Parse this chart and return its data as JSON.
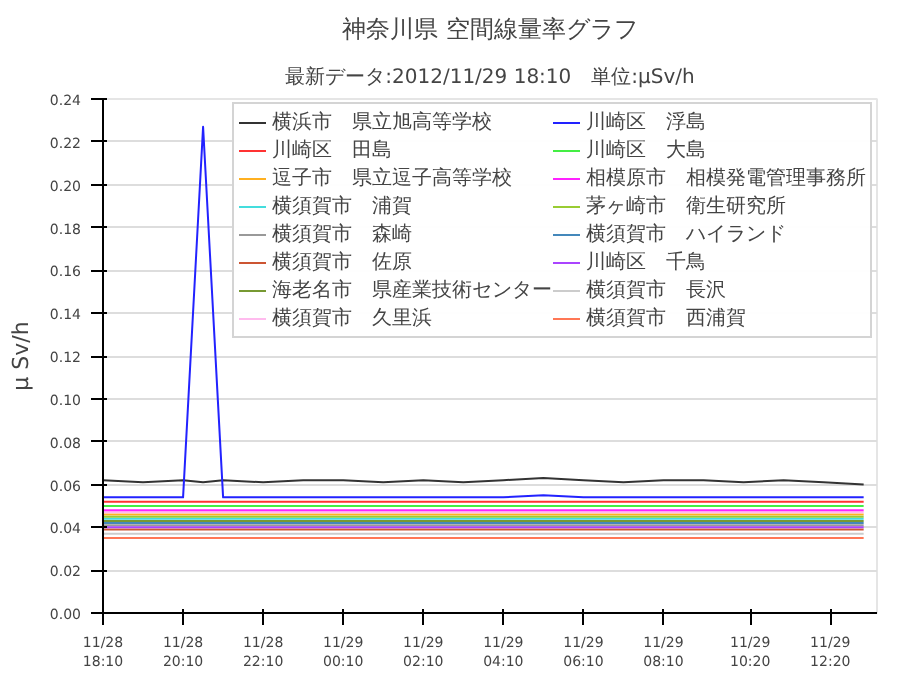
{
  "chart_data": {
    "type": "line",
    "title": "神奈川県 空間線量率グラフ",
    "subtitle": "最新データ:2012/11/29 18:10　単位:μSv/h",
    "ylabel": "μ Sv/h",
    "x": [
      "2012-11-28T18:10",
      "2012-11-28T19:10",
      "2012-11-28T20:10",
      "2012-11-28T20:40",
      "2012-11-28T21:10",
      "2012-11-28T22:10",
      "2012-11-28T23:10",
      "2012-11-29T00:10",
      "2012-11-29T01:10",
      "2012-11-29T02:10",
      "2012-11-29T03:10",
      "2012-11-29T04:10",
      "2012-11-29T05:10",
      "2012-11-29T06:10",
      "2012-11-29T07:10",
      "2012-11-29T08:10",
      "2012-11-29T09:10",
      "2012-11-29T10:10",
      "2012-11-29T11:10",
      "2012-11-29T12:10",
      "2012-11-29T13:10"
    ],
    "xlim": [
      "2012-11-28T18:10",
      "2012-11-29T13:30"
    ],
    "xticks": [
      {
        "value": "2012-11-28T18:10",
        "label": "11/28\n18:10"
      },
      {
        "value": "2012-11-28T20:10",
        "label": "11/28\n20:10"
      },
      {
        "value": "2012-11-28T22:10",
        "label": "11/28\n22:10"
      },
      {
        "value": "2012-11-29T00:10",
        "label": "11/29\n00:10"
      },
      {
        "value": "2012-11-29T02:10",
        "label": "11/29\n02:10"
      },
      {
        "value": "2012-11-29T04:10",
        "label": "11/29\n04:10"
      },
      {
        "value": "2012-11-29T06:10",
        "label": "11/29\n06:10"
      },
      {
        "value": "2012-11-29T08:10",
        "label": "11/29\n08:10"
      },
      {
        "value": "2012-11-29T10:20",
        "label": "11/29\n10:20"
      },
      {
        "value": "2012-11-29T12:20",
        "label": "11/29\n12:20"
      }
    ],
    "ylim": [
      0,
      0.24
    ],
    "yticks": [
      {
        "value": 0,
        "label": "0.00"
      },
      0.02,
      0.04,
      0.06,
      0.08,
      {
        "value": 0.1,
        "label": "0.10"
      },
      0.12,
      0.14,
      0.16,
      0.18,
      {
        "value": 0.2,
        "label": "0.20"
      },
      0.22,
      0.24
    ],
    "grid": "y",
    "legend": "top right",
    "marker": "none",
    "line_style": "solid",
    "series": [
      {
        "name": "横浜市　県立旭高等学校",
        "color": "#333333",
        "values": [
          0.062,
          0.061,
          0.062,
          0.061,
          0.062,
          0.061,
          0.062,
          0.062,
          0.061,
          0.062,
          0.061,
          0.062,
          0.063,
          0.062,
          0.061,
          0.062,
          0.062,
          0.061,
          0.062,
          0.061,
          0.06
        ]
      },
      {
        "name": "川崎区　田島",
        "color": "#ff3333",
        "values": [
          0.052,
          0.052,
          0.052,
          0.052,
          0.052,
          0.052,
          0.052,
          0.052,
          0.052,
          0.052,
          0.052,
          0.052,
          0.052,
          0.052,
          0.052,
          0.052,
          0.052,
          0.052,
          0.052,
          0.052,
          0.052
        ]
      },
      {
        "name": "逗子市　県立逗子高等学校",
        "color": "#ffb020",
        "values": [
          0.046,
          0.046,
          0.046,
          0.046,
          0.046,
          0.046,
          0.046,
          0.046,
          0.046,
          0.046,
          0.046,
          0.046,
          0.046,
          0.046,
          0.046,
          0.046,
          0.046,
          0.046,
          0.046,
          0.046,
          0.046
        ]
      },
      {
        "name": "横須賀市　浦賀",
        "color": "#44dddd",
        "values": [
          0.044,
          0.044,
          0.044,
          0.044,
          0.044,
          0.044,
          0.044,
          0.044,
          0.044,
          0.044,
          0.044,
          0.044,
          0.044,
          0.044,
          0.044,
          0.044,
          0.044,
          0.044,
          0.044,
          0.044,
          0.044
        ]
      },
      {
        "name": "横須賀市　森崎",
        "color": "#999999",
        "values": [
          0.041,
          0.041,
          0.041,
          0.041,
          0.041,
          0.041,
          0.041,
          0.041,
          0.041,
          0.041,
          0.041,
          0.041,
          0.041,
          0.041,
          0.041,
          0.041,
          0.041,
          0.041,
          0.041,
          0.041,
          0.041
        ]
      },
      {
        "name": "横須賀市　佐原",
        "color": "#cc5533",
        "values": [
          0.039,
          0.039,
          0.039,
          0.039,
          0.039,
          0.039,
          0.039,
          0.039,
          0.039,
          0.039,
          0.039,
          0.039,
          0.039,
          0.039,
          0.039,
          0.039,
          0.039,
          0.039,
          0.039,
          0.039,
          0.039
        ]
      },
      {
        "name": "海老名市　県産業技術センター",
        "color": "#779933",
        "values": [
          0.043,
          0.043,
          0.043,
          0.043,
          0.043,
          0.043,
          0.043,
          0.043,
          0.043,
          0.043,
          0.043,
          0.043,
          0.043,
          0.043,
          0.043,
          0.043,
          0.043,
          0.043,
          0.043,
          0.043,
          0.043
        ]
      },
      {
        "name": "横須賀市　久里浜",
        "color": "#ffbbee",
        "values": [
          0.047,
          0.047,
          0.047,
          0.047,
          0.047,
          0.047,
          0.047,
          0.047,
          0.047,
          0.047,
          0.047,
          0.047,
          0.047,
          0.047,
          0.047,
          0.047,
          0.047,
          0.047,
          0.047,
          0.047,
          0.047
        ]
      },
      {
        "name": "川崎区　浮島",
        "color": "#2222ff",
        "values": [
          0.054,
          0.054,
          0.054,
          0.227,
          0.054,
          0.054,
          0.054,
          0.054,
          0.054,
          0.054,
          0.054,
          0.054,
          0.055,
          0.054,
          0.054,
          0.054,
          0.054,
          0.054,
          0.054,
          0.054,
          0.054
        ]
      },
      {
        "name": "川崎区　大島",
        "color": "#44ee44",
        "values": [
          0.05,
          0.05,
          0.05,
          0.05,
          0.05,
          0.05,
          0.05,
          0.05,
          0.05,
          0.05,
          0.05,
          0.05,
          0.05,
          0.05,
          0.05,
          0.05,
          0.05,
          0.05,
          0.05,
          0.05,
          0.05
        ]
      },
      {
        "name": "相模原市　相模発電管理事務所",
        "color": "#ff22ff",
        "values": [
          0.048,
          0.048,
          0.048,
          0.048,
          0.048,
          0.048,
          0.048,
          0.048,
          0.048,
          0.048,
          0.048,
          0.048,
          0.048,
          0.048,
          0.048,
          0.048,
          0.048,
          0.048,
          0.048,
          0.048,
          0.048
        ]
      },
      {
        "name": "茅ヶ崎市　衛生研究所",
        "color": "#99cc33",
        "values": [
          0.045,
          0.045,
          0.045,
          0.045,
          0.045,
          0.045,
          0.045,
          0.045,
          0.045,
          0.045,
          0.045,
          0.045,
          0.045,
          0.045,
          0.045,
          0.045,
          0.045,
          0.045,
          0.045,
          0.045,
          0.045
        ]
      },
      {
        "name": "横須賀市　ハイランド",
        "color": "#4488bb",
        "values": [
          0.042,
          0.042,
          0.042,
          0.042,
          0.042,
          0.042,
          0.042,
          0.042,
          0.042,
          0.042,
          0.042,
          0.042,
          0.042,
          0.042,
          0.042,
          0.042,
          0.042,
          0.042,
          0.042,
          0.042,
          0.042
        ]
      },
      {
        "name": "川崎区　千鳥",
        "color": "#aa44ff",
        "values": [
          0.04,
          0.04,
          0.04,
          0.04,
          0.04,
          0.04,
          0.04,
          0.04,
          0.04,
          0.04,
          0.04,
          0.04,
          0.04,
          0.04,
          0.04,
          0.04,
          0.04,
          0.04,
          0.04,
          0.04,
          0.04
        ]
      },
      {
        "name": "横須賀市　長沢",
        "color": "#cccccc",
        "values": [
          0.037,
          0.037,
          0.037,
          0.037,
          0.037,
          0.037,
          0.037,
          0.037,
          0.037,
          0.037,
          0.037,
          0.037,
          0.037,
          0.037,
          0.037,
          0.037,
          0.037,
          0.037,
          0.037,
          0.037,
          0.037
        ]
      },
      {
        "name": "横須賀市　西浦賀",
        "color": "#ff7755",
        "values": [
          0.035,
          0.035,
          0.035,
          0.035,
          0.035,
          0.035,
          0.035,
          0.035,
          0.035,
          0.035,
          0.035,
          0.035,
          0.035,
          0.035,
          0.035,
          0.035,
          0.035,
          0.035,
          0.035,
          0.035,
          0.035
        ]
      }
    ]
  }
}
